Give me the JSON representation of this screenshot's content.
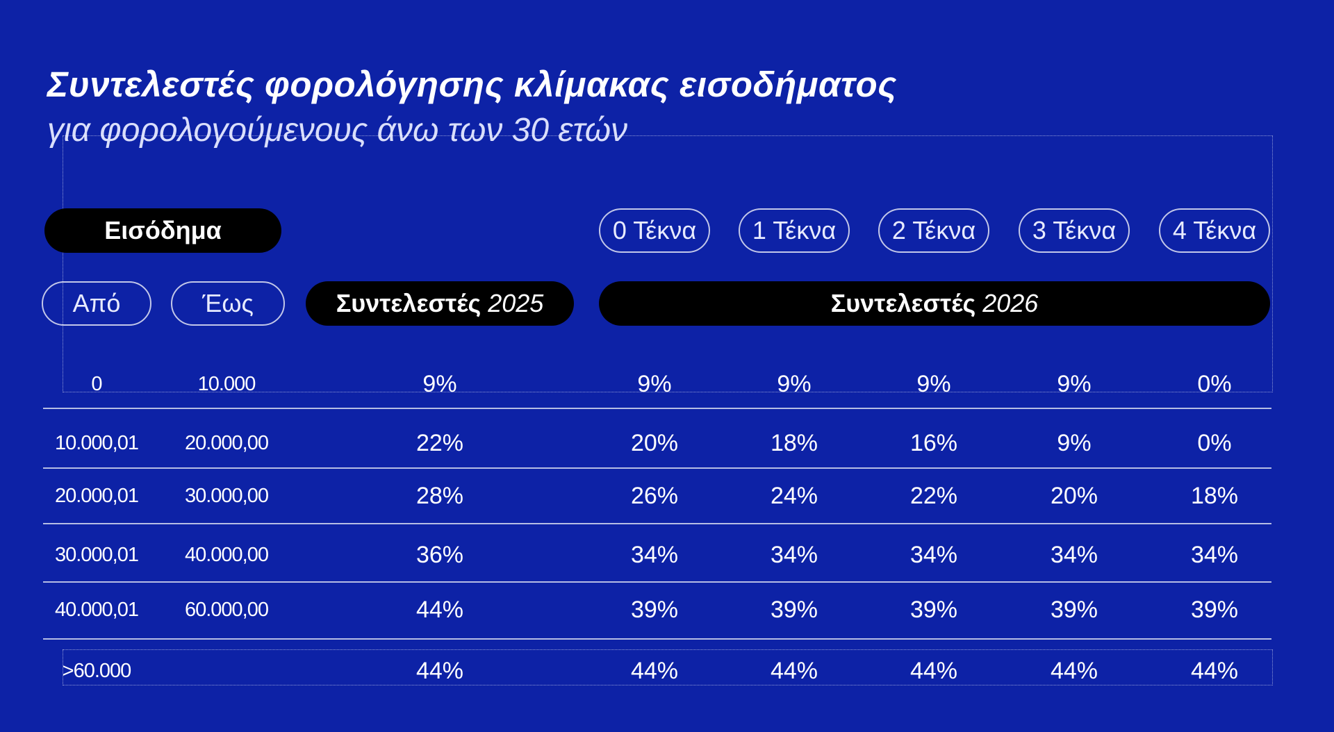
{
  "title": "Συντελεστές φορολόγησης κλίμακας εισοδήματος",
  "subtitle": "για φορολογούμενους άνω των 30 ετών",
  "header": {
    "income": "Εισόδημα",
    "children": [
      "0 Τέκνα",
      "1 Τέκνα",
      "2 Τέκνα",
      "3 Τέκνα",
      "4 Τέκνα"
    ],
    "from": "Από",
    "to": "Έως",
    "rates_word": "Συντελεστές",
    "year_2025": "2025",
    "year_2026": "2026"
  },
  "rows": [
    {
      "from": "0",
      "to": "10.000",
      "r2025": "9%",
      "r2026": [
        "9%",
        "9%",
        "9%",
        "9%",
        "0%"
      ]
    },
    {
      "from": "10.000,01",
      "to": "20.000,00",
      "r2025": "22%",
      "r2026": [
        "20%",
        "18%",
        "16%",
        "9%",
        "0%"
      ]
    },
    {
      "from": "20.000,01",
      "to": "30.000,00",
      "r2025": "28%",
      "r2026": [
        "26%",
        "24%",
        "22%",
        "20%",
        "18%"
      ]
    },
    {
      "from": "30.000,01",
      "to": "40.000,00",
      "r2025": "36%",
      "r2026": [
        "34%",
        "34%",
        "34%",
        "34%",
        "34%"
      ]
    },
    {
      "from": "40.000,01",
      "to": "60.000,00",
      "r2025": "44%",
      "r2026": [
        "39%",
        "39%",
        "39%",
        "39%",
        "39%"
      ]
    },
    {
      "from": ">60.000",
      "to": "",
      "r2025": "44%",
      "r2026": [
        "44%",
        "44%",
        "44%",
        "44%",
        "44%"
      ]
    }
  ],
  "colors": {
    "background": "#0d22a6",
    "pill_solid": "#000000",
    "text": "#ffffff"
  }
}
